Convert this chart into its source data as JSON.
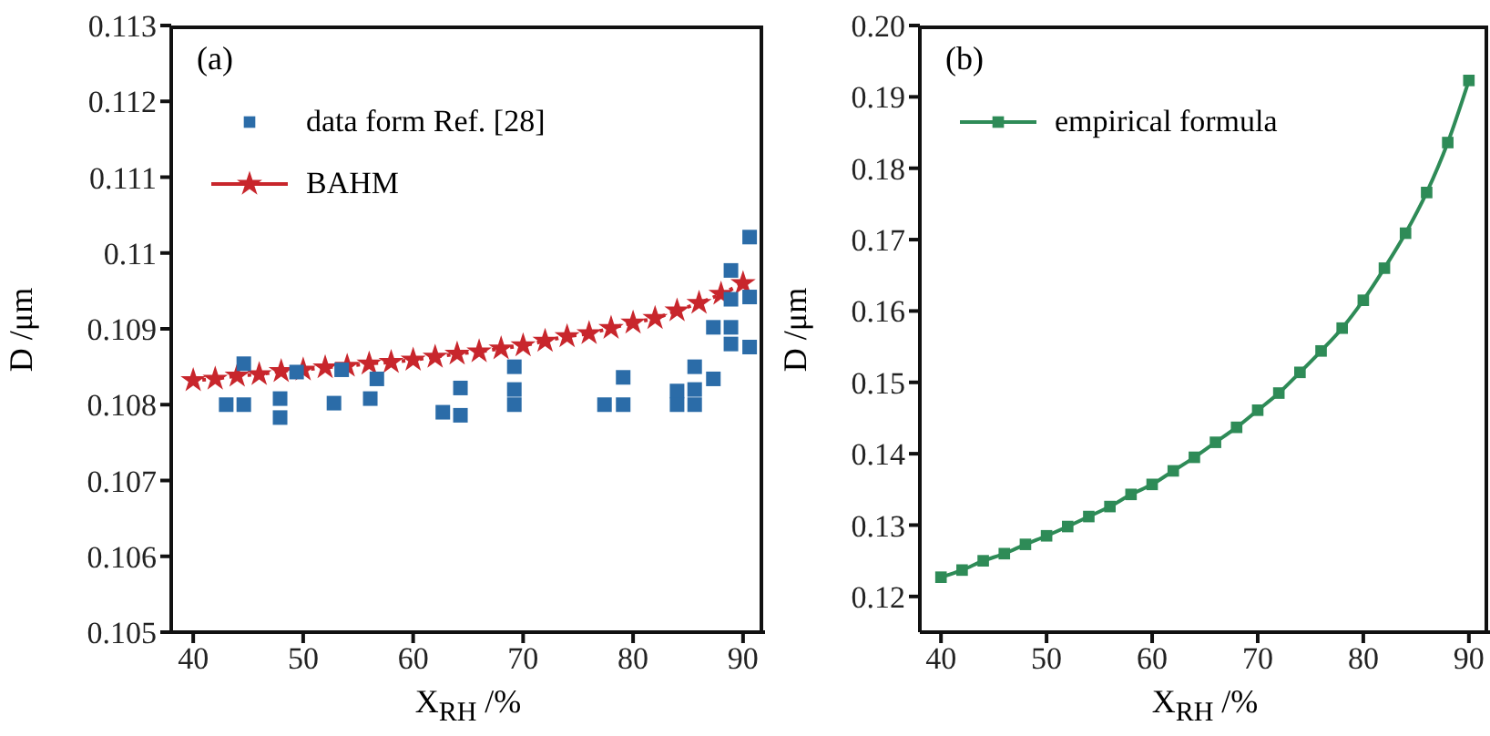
{
  "chart_data": [
    {
      "type": "scatter",
      "xlabel": "X$_{RH}$ /%",
      "ylabel": "D /μm",
      "annotations": [
        "(a)"
      ],
      "xlim": [
        38,
        92
      ],
      "xticks": [
        40,
        50,
        60,
        70,
        80,
        90
      ],
      "ylim": [
        0.105,
        0.113
      ],
      "yticks": [
        0.105,
        0.106,
        0.107,
        0.108,
        0.109,
        0.11,
        0.111,
        0.112,
        0.113
      ],
      "legend": "top left",
      "series": [
        {
          "name": "data form Ref. [28]",
          "marker": "square",
          "color": "#2b6ca8",
          "x": [
            43.0,
            44.6,
            44.6,
            47.9,
            47.9,
            49.4,
            52.8,
            53.5,
            56.1,
            56.7,
            62.7,
            64.3,
            64.3,
            69.2,
            69.2,
            69.2,
            77.4,
            79.1,
            79.1,
            84.0,
            84.0,
            85.6,
            85.6,
            85.6,
            87.3,
            87.3,
            88.9,
            88.9,
            88.9,
            88.9,
            90.6,
            90.6,
            90.6
          ],
          "values": [
            0.108,
            0.108,
            0.10854,
            0.10808,
            0.10783,
            0.10843,
            0.10802,
            0.10846,
            0.10808,
            0.10834,
            0.1079,
            0.10822,
            0.10786,
            0.1085,
            0.1082,
            0.108,
            0.108,
            0.108,
            0.10836,
            0.10818,
            0.108,
            0.1085,
            0.1082,
            0.108,
            0.10834,
            0.10902,
            0.10902,
            0.1088,
            0.10939,
            0.10977,
            0.11021,
            0.10942,
            0.10876
          ]
        },
        {
          "name": "BAHM",
          "type": "line",
          "marker": "star",
          "line_style": "dotted",
          "color": "#c8262c",
          "x": [
            40,
            42,
            44,
            46,
            48,
            50,
            52,
            54,
            56,
            58,
            60,
            62,
            64,
            66,
            68,
            70,
            72,
            74,
            76,
            78,
            80,
            82,
            84,
            86,
            88,
            90
          ],
          "values": [
            0.10832,
            0.10834,
            0.10838,
            0.1084,
            0.10844,
            0.10846,
            0.10849,
            0.10851,
            0.10854,
            0.10856,
            0.10859,
            0.10863,
            0.10867,
            0.1087,
            0.10874,
            0.10878,
            0.10884,
            0.1089,
            0.10894,
            0.10901,
            0.10908,
            0.10914,
            0.10924,
            0.10934,
            0.10946,
            0.1096
          ]
        }
      ]
    },
    {
      "type": "line",
      "xlabel": "X$_{RH}$ /%",
      "ylabel": "D /μm",
      "annotations": [
        "(b)"
      ],
      "xlim": [
        38,
        92
      ],
      "xticks": [
        40,
        50,
        60,
        70,
        80,
        90
      ],
      "ylim": [
        0.115,
        0.2
      ],
      "yticks": [
        0.12,
        0.13,
        0.14,
        0.15,
        0.16,
        0.17,
        0.18,
        0.19,
        {
          "value": 0.2,
          "label": "0.20"
        }
      ],
      "legend": "top left",
      "series": [
        {
          "name": "empirical formula",
          "marker": "square",
          "line_style": "solid",
          "color": "#2e8b57",
          "x": [
            40,
            42,
            44,
            46,
            48,
            50,
            52,
            54,
            56,
            58,
            60,
            62,
            64,
            66,
            68,
            70,
            72,
            74,
            76,
            78,
            80,
            82,
            84,
            86,
            88,
            90
          ],
          "values": [
            0.1227,
            0.1237,
            0.125,
            0.126,
            0.1273,
            0.1285,
            0.1298,
            0.1312,
            0.1326,
            0.1343,
            0.1357,
            0.1376,
            0.1395,
            0.1416,
            0.1437,
            0.1461,
            0.1485,
            0.1514,
            0.1544,
            0.1576,
            0.1615,
            0.166,
            0.1709,
            0.1766,
            0.1836,
            0.1923
          ]
        }
      ]
    }
  ]
}
